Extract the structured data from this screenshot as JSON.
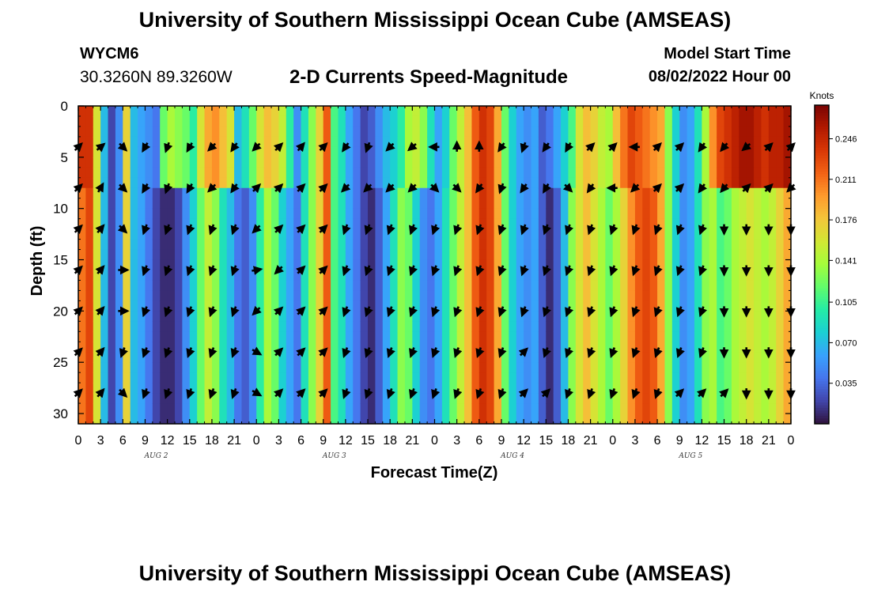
{
  "header": {
    "title": "University of Southern Mississippi Ocean Cube (AMSEAS)",
    "station_id": "WYCM6",
    "station_coords": "30.3260N  89.3260W",
    "plot_title": "2-D Currents Speed-Magnitude",
    "model_start_label": "Model Start Time",
    "model_start_value": "08/02/2022 Hour 00"
  },
  "footer": {
    "title": "University of Southern Mississippi Ocean Cube (AMSEAS)"
  },
  "chart_data": {
    "type": "heatmap",
    "title": "2-D Currents Speed-Magnitude",
    "xlabel": "Forecast Time(Z)",
    "ylabel": "Depth (ft)",
    "x_tick_labels": [
      "0",
      "3",
      "6",
      "9",
      "12",
      "15",
      "18",
      "21",
      "0",
      "3",
      "6",
      "9",
      "12",
      "15",
      "18",
      "21",
      "0",
      "3",
      "6",
      "9",
      "12",
      "15",
      "18",
      "21",
      "0",
      "3",
      "6",
      "9",
      "12",
      "15",
      "18",
      "21",
      "0"
    ],
    "date_labels": [
      {
        "label": "AUG 2",
        "hour_index": 10.5
      },
      {
        "label": "AUG 3",
        "hour_index": 34.5
      },
      {
        "label": "AUG 4",
        "hour_index": 58.5
      },
      {
        "label": "AUG 5",
        "hour_index": 82.5
      }
    ],
    "x_range_hours": [
      0,
      96
    ],
    "y_ticks": [
      0,
      5,
      10,
      15,
      20,
      25,
      30
    ],
    "y_range_ft": [
      0,
      31
    ],
    "colorbar": {
      "unit": "Knots",
      "tick_labels": [
        "0.246",
        "0.211",
        "0.176",
        "0.141",
        "0.105",
        "0.070",
        "0.035"
      ],
      "tick_values": [
        0.246,
        0.211,
        0.176,
        0.141,
        0.105,
        0.07,
        0.035
      ],
      "range": [
        0.0,
        0.275
      ],
      "colors": [
        "#30123b",
        "#4145ab",
        "#4675ed",
        "#39a2fc",
        "#1bcfd4",
        "#24eca6",
        "#61fc6c",
        "#a4fc3b",
        "#d1e834",
        "#f3c63a",
        "#fe9b2d",
        "#f36315",
        "#d93806",
        "#b11901",
        "#7a0403"
      ]
    },
    "column_speeds_knots": [
      0.21,
      0.23,
      0.16,
      0.07,
      0.02,
      0.05,
      0.17,
      0.07,
      0.06,
      0.04,
      0.02,
      0.01,
      0.01,
      0.02,
      0.05,
      0.08,
      0.12,
      0.15,
      0.13,
      0.09,
      0.07,
      0.04,
      0.03,
      0.05,
      0.1,
      0.14,
      0.12,
      0.08,
      0.06,
      0.04,
      0.09,
      0.13,
      0.17,
      0.22,
      0.11,
      0.09,
      0.06,
      0.04,
      0.02,
      0.01,
      0.03,
      0.06,
      0.09,
      0.13,
      0.12,
      0.08,
      0.05,
      0.04,
      0.06,
      0.09,
      0.12,
      0.15,
      0.18,
      0.22,
      0.24,
      0.23,
      0.19,
      0.12,
      0.08,
      0.06,
      0.05,
      0.06,
      0.03,
      0.01,
      0.03,
      0.07,
      0.13,
      0.16,
      0.18,
      0.16,
      0.14,
      0.12,
      0.14,
      0.17,
      0.2,
      0.22,
      0.23,
      0.22,
      0.19,
      0.13,
      0.08,
      0.05,
      0.06,
      0.09,
      0.13,
      0.14,
      0.11,
      0.12,
      0.14,
      0.15,
      0.16,
      0.15,
      0.14,
      0.15,
      0.17,
      0.19
    ],
    "near_surface_speeds_knots": [
      0.24,
      0.24,
      0.16,
      0.07,
      0.02,
      0.05,
      0.17,
      0.07,
      0.06,
      0.05,
      0.04,
      0.12,
      0.14,
      0.13,
      0.12,
      0.1,
      0.16,
      0.19,
      0.2,
      0.18,
      0.16,
      0.07,
      0.09,
      0.12,
      0.16,
      0.18,
      0.17,
      0.15,
      0.1,
      0.05,
      0.09,
      0.13,
      0.17,
      0.22,
      0.11,
      0.09,
      0.06,
      0.04,
      0.02,
      0.03,
      0.05,
      0.07,
      0.08,
      0.1,
      0.14,
      0.15,
      0.13,
      0.09,
      0.06,
      0.08,
      0.12,
      0.15,
      0.18,
      0.22,
      0.24,
      0.23,
      0.19,
      0.12,
      0.08,
      0.06,
      0.05,
      0.06,
      0.03,
      0.04,
      0.06,
      0.08,
      0.11,
      0.16,
      0.18,
      0.17,
      0.15,
      0.14,
      0.18,
      0.21,
      0.23,
      0.22,
      0.21,
      0.2,
      0.19,
      0.13,
      0.08,
      0.05,
      0.06,
      0.09,
      0.14,
      0.2,
      0.23,
      0.24,
      0.25,
      0.26,
      0.26,
      0.25,
      0.24,
      0.25,
      0.25,
      0.26
    ],
    "near_surface_depth_ft": 8,
    "arrow_hours": [
      0,
      3,
      6,
      9,
      12,
      15,
      18,
      21,
      24,
      27,
      30,
      33,
      36,
      39,
      42,
      45,
      48,
      51,
      54,
      57,
      60,
      63,
      66,
      69,
      72,
      75,
      78,
      81,
      84,
      87,
      90,
      93,
      96
    ],
    "arrow_depths_ft": [
      4,
      8,
      12,
      16,
      20,
      24,
      28
    ],
    "arrow_directions_deg": [
      [
        45,
        50,
        135,
        210,
        200,
        210,
        225,
        215,
        225,
        45,
        40,
        45,
        215,
        200,
        225,
        230,
        270,
        0,
        0,
        215,
        200,
        215,
        210,
        45,
        45,
        270,
        45,
        45,
        215,
        220,
        230,
        45,
        45
      ],
      [
        45,
        30,
        135,
        210,
        200,
        210,
        225,
        215,
        45,
        45,
        45,
        45,
        225,
        225,
        225,
        225,
        135,
        135,
        215,
        200,
        215,
        210,
        135,
        215,
        270,
        225,
        45,
        45,
        215,
        220,
        45,
        45,
        225
      ],
      [
        45,
        40,
        135,
        200,
        200,
        200,
        200,
        200,
        225,
        45,
        45,
        45,
        200,
        200,
        200,
        200,
        200,
        200,
        200,
        200,
        200,
        200,
        200,
        200,
        200,
        200,
        200,
        200,
        200,
        180,
        180,
        180,
        180
      ],
      [
        45,
        40,
        90,
        200,
        200,
        200,
        200,
        200,
        80,
        225,
        45,
        45,
        200,
        200,
        200,
        200,
        200,
        200,
        200,
        200,
        200,
        200,
        200,
        200,
        200,
        200,
        200,
        200,
        200,
        180,
        180,
        180,
        180
      ],
      [
        45,
        40,
        90,
        200,
        200,
        200,
        200,
        200,
        225,
        45,
        45,
        45,
        200,
        200,
        200,
        200,
        200,
        200,
        200,
        200,
        200,
        200,
        200,
        200,
        200,
        200,
        200,
        200,
        200,
        180,
        180,
        180,
        180
      ],
      [
        45,
        40,
        200,
        200,
        200,
        200,
        200,
        200,
        120,
        45,
        45,
        45,
        200,
        200,
        200,
        200,
        200,
        200,
        200,
        200,
        45,
        200,
        200,
        200,
        200,
        200,
        200,
        200,
        200,
        180,
        180,
        180,
        180
      ],
      [
        45,
        40,
        135,
        200,
        200,
        200,
        200,
        200,
        120,
        45,
        45,
        45,
        200,
        200,
        200,
        200,
        200,
        200,
        200,
        200,
        45,
        45,
        200,
        200,
        200,
        200,
        200,
        45,
        45,
        45,
        180,
        180,
        180
      ]
    ]
  }
}
